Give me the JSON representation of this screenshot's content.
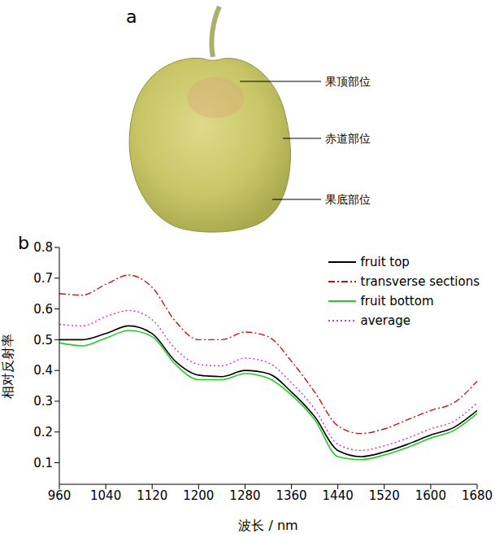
{
  "panel_a": {
    "letter": "a",
    "labels": [
      "果顶部位",
      "赤道部位",
      "果底部位"
    ]
  },
  "chart_data": {
    "panel": "b",
    "type": "line",
    "x_label": "波长 / nm",
    "y_label": "相对反射率",
    "x": [
      960,
      1000,
      1040,
      1080,
      1120,
      1160,
      1200,
      1240,
      1280,
      1320,
      1360,
      1400,
      1440,
      1480,
      1520,
      1560,
      1600,
      1640,
      1680
    ],
    "series": [
      {
        "name": "fruit top",
        "color": "#000000",
        "line_style": "solid",
        "values": [
          0.5,
          0.5,
          0.52,
          0.545,
          0.52,
          0.43,
          0.385,
          0.38,
          0.4,
          0.39,
          0.33,
          0.25,
          0.14,
          0.12,
          0.135,
          0.16,
          0.19,
          0.215,
          0.27
        ]
      },
      {
        "name": "transverse sections",
        "color": "#cc1111",
        "line_style": "dashdot",
        "values": [
          0.65,
          0.645,
          0.68,
          0.71,
          0.67,
          0.56,
          0.5,
          0.5,
          0.525,
          0.51,
          0.43,
          0.33,
          0.22,
          0.195,
          0.21,
          0.24,
          0.27,
          0.295,
          0.365
        ]
      },
      {
        "name": "fruit bottom",
        "color": "#22cc22",
        "line_style": "solid",
        "values": [
          0.49,
          0.48,
          0.505,
          0.53,
          0.51,
          0.42,
          0.37,
          0.37,
          0.39,
          0.375,
          0.32,
          0.24,
          0.12,
          0.11,
          0.125,
          0.15,
          0.18,
          0.205,
          0.26
        ]
      },
      {
        "name": "average",
        "color": "#cc33cc",
        "line_style": "dotted",
        "values": [
          0.55,
          0.545,
          0.575,
          0.595,
          0.565,
          0.47,
          0.42,
          0.415,
          0.44,
          0.425,
          0.36,
          0.275,
          0.16,
          0.14,
          0.155,
          0.18,
          0.21,
          0.235,
          0.295
        ]
      }
    ],
    "xlim": [
      960,
      1680
    ],
    "xticks": [
      960,
      1040,
      1120,
      1200,
      1280,
      1360,
      1440,
      1520,
      1600,
      1680
    ],
    "ylim": [
      0.03,
      0.8
    ],
    "yticks": [
      0.1,
      0.2,
      0.3,
      0.4,
      0.5,
      0.6,
      0.7,
      0.8
    ],
    "grid": false,
    "legend": "upper right"
  }
}
